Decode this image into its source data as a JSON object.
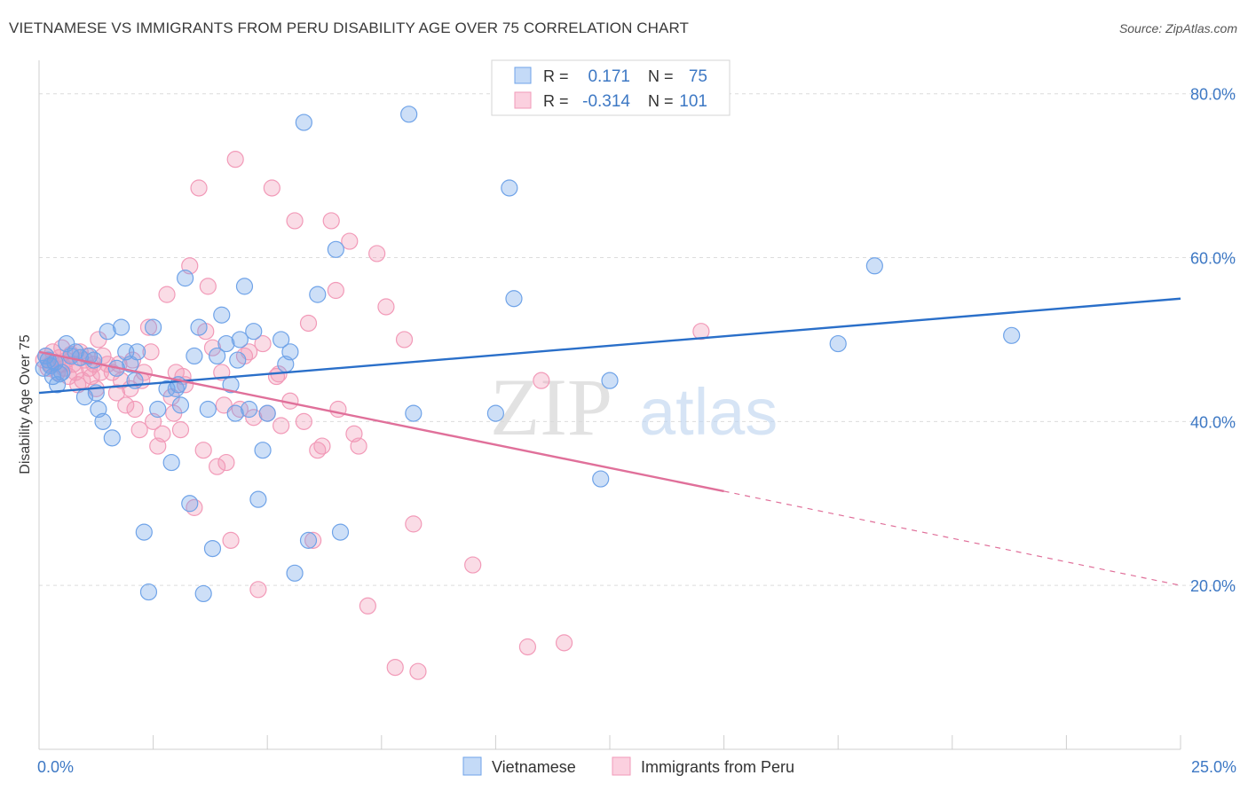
{
  "title": "VIETNAMESE VS IMMIGRANTS FROM PERU DISABILITY AGE OVER 75 CORRELATION CHART",
  "source": "Source: ZipAtlas.com",
  "watermark": {
    "zip": "ZIP",
    "atlas": "atlas"
  },
  "colors": {
    "vietnamese": "#6fa3e8",
    "vietnamese_line": "#2a6fc9",
    "peru": "#f29ab8",
    "peru_line": "#e0709a",
    "axis_label": "#3d78c4"
  },
  "stats": {
    "r_label": "R =",
    "n_label": "N =",
    "vietnamese": {
      "r": "0.171",
      "n": "75"
    },
    "peru": {
      "r": "-0.314",
      "n": "101"
    }
  },
  "legend": {
    "vietnamese": "Vietnamese",
    "peru": "Immigrants from Peru"
  },
  "chart_data": {
    "type": "scatter",
    "title": "VIETNAMESE VS IMMIGRANTS FROM PERU DISABILITY AGE OVER 75 CORRELATION CHART",
    "xlabel": "",
    "ylabel": "Disability Age Over 75",
    "xlim": [
      0,
      25
    ],
    "ylim": [
      0,
      83
    ],
    "x_tick_labels": [
      "0.0%",
      "25.0%"
    ],
    "y_ticks": [
      20,
      40,
      60,
      80
    ],
    "y_tick_labels": [
      "20.0%",
      "40.0%",
      "60.0%",
      "80.0%"
    ],
    "grid": true,
    "legend_position": "bottom-center",
    "series": [
      {
        "name": "Vietnamese",
        "points": [
          [
            0.1,
            46.5
          ],
          [
            0.2,
            47.5
          ],
          [
            0.25,
            46.8
          ],
          [
            0.3,
            45.5
          ],
          [
            0.35,
            47.2
          ],
          [
            0.4,
            44.5
          ],
          [
            0.5,
            46
          ],
          [
            0.6,
            49.5
          ],
          [
            0.7,
            48
          ],
          [
            0.8,
            48.5
          ],
          [
            0.9,
            47.8
          ],
          [
            1.0,
            43
          ],
          [
            1.1,
            48
          ],
          [
            1.2,
            47.5
          ],
          [
            1.3,
            41.5
          ],
          [
            1.4,
            40
          ],
          [
            1.5,
            51
          ],
          [
            1.6,
            38
          ],
          [
            1.7,
            46.5
          ],
          [
            1.8,
            51.5
          ],
          [
            1.9,
            48.5
          ],
          [
            2.0,
            47
          ],
          [
            2.1,
            45
          ],
          [
            2.3,
            26.5
          ],
          [
            2.4,
            19.2
          ],
          [
            2.5,
            51.5
          ],
          [
            2.6,
            41.5
          ],
          [
            2.8,
            44
          ],
          [
            2.9,
            35
          ],
          [
            3.0,
            44
          ],
          [
            3.1,
            42
          ],
          [
            3.2,
            57.5
          ],
          [
            3.3,
            30
          ],
          [
            3.4,
            48
          ],
          [
            3.5,
            51.5
          ],
          [
            3.6,
            19
          ],
          [
            3.7,
            41.5
          ],
          [
            3.8,
            24.5
          ],
          [
            3.9,
            48
          ],
          [
            4.0,
            53
          ],
          [
            4.1,
            49.5
          ],
          [
            4.2,
            44.5
          ],
          [
            4.3,
            41
          ],
          [
            4.4,
            50
          ],
          [
            4.5,
            56.5
          ],
          [
            4.6,
            41.5
          ],
          [
            4.7,
            51
          ],
          [
            4.8,
            30.5
          ],
          [
            4.9,
            36.5
          ],
          [
            5.0,
            41
          ],
          [
            5.3,
            50
          ],
          [
            5.5,
            48.5
          ],
          [
            5.6,
            21.5
          ],
          [
            5.8,
            76.5
          ],
          [
            5.9,
            25.5
          ],
          [
            6.1,
            55.5
          ],
          [
            6.5,
            61
          ],
          [
            6.6,
            26.5
          ],
          [
            8.1,
            77.5
          ],
          [
            8.2,
            41
          ],
          [
            10.0,
            41
          ],
          [
            10.3,
            68.5
          ],
          [
            10.4,
            55
          ],
          [
            12.3,
            33
          ],
          [
            12.5,
            45
          ],
          [
            17.5,
            49.5
          ],
          [
            18.3,
            59
          ],
          [
            21.3,
            50.5
          ],
          [
            0.15,
            48
          ],
          [
            0.45,
            45.8
          ],
          [
            1.25,
            43.5
          ],
          [
            2.15,
            48.5
          ],
          [
            3.05,
            44.5
          ],
          [
            4.35,
            47.5
          ],
          [
            5.4,
            47
          ]
        ]
      },
      {
        "name": "Immigrants from Peru",
        "points": [
          [
            0.1,
            47.5
          ],
          [
            0.15,
            48
          ],
          [
            0.2,
            46.5
          ],
          [
            0.25,
            47
          ],
          [
            0.3,
            48.5
          ],
          [
            0.35,
            47.2
          ],
          [
            0.4,
            46
          ],
          [
            0.45,
            47.8
          ],
          [
            0.5,
            47
          ],
          [
            0.55,
            46.5
          ],
          [
            0.6,
            47.5
          ],
          [
            0.65,
            45.5
          ],
          [
            0.7,
            48.2
          ],
          [
            0.75,
            47
          ],
          [
            0.8,
            46
          ],
          [
            0.85,
            44.5
          ],
          [
            0.9,
            48.5
          ],
          [
            0.95,
            45
          ],
          [
            1.0,
            47.5
          ],
          [
            1.05,
            48
          ],
          [
            1.1,
            46.5
          ],
          [
            1.15,
            45.5
          ],
          [
            1.2,
            47
          ],
          [
            1.25,
            44
          ],
          [
            1.3,
            50
          ],
          [
            1.4,
            48
          ],
          [
            1.5,
            47
          ],
          [
            1.6,
            46
          ],
          [
            1.7,
            43.5
          ],
          [
            1.8,
            45
          ],
          [
            1.9,
            42
          ],
          [
            2.0,
            44
          ],
          [
            2.1,
            41.5
          ],
          [
            2.2,
            39
          ],
          [
            2.25,
            45
          ],
          [
            2.3,
            46
          ],
          [
            2.4,
            51.5
          ],
          [
            2.5,
            40
          ],
          [
            2.6,
            37
          ],
          [
            2.7,
            38.5
          ],
          [
            2.8,
            55.5
          ],
          [
            2.9,
            43
          ],
          [
            3.0,
            46
          ],
          [
            3.1,
            39
          ],
          [
            3.2,
            44.5
          ],
          [
            3.3,
            59
          ],
          [
            3.4,
            29.5
          ],
          [
            3.5,
            68.5
          ],
          [
            3.6,
            36.5
          ],
          [
            3.7,
            56.5
          ],
          [
            3.8,
            49
          ],
          [
            3.9,
            34.5
          ],
          [
            4.0,
            46
          ],
          [
            4.1,
            35
          ],
          [
            4.2,
            25.5
          ],
          [
            4.3,
            72
          ],
          [
            4.4,
            41.5
          ],
          [
            4.5,
            48
          ],
          [
            4.6,
            48.5
          ],
          [
            4.7,
            40.5
          ],
          [
            4.8,
            19.5
          ],
          [
            4.9,
            49.5
          ],
          [
            5.0,
            41
          ],
          [
            5.1,
            68.5
          ],
          [
            5.2,
            45.5
          ],
          [
            5.3,
            39.5
          ],
          [
            5.5,
            42.5
          ],
          [
            5.6,
            64.5
          ],
          [
            5.8,
            40
          ],
          [
            5.9,
            52
          ],
          [
            6.0,
            25.5
          ],
          [
            6.1,
            36.5
          ],
          [
            6.2,
            37
          ],
          [
            6.4,
            64.5
          ],
          [
            6.5,
            56
          ],
          [
            6.8,
            62
          ],
          [
            6.9,
            38.5
          ],
          [
            7.0,
            37
          ],
          [
            7.2,
            17.5
          ],
          [
            7.4,
            60.5
          ],
          [
            7.6,
            54
          ],
          [
            7.8,
            10
          ],
          [
            8.0,
            50
          ],
          [
            8.2,
            27.5
          ],
          [
            8.3,
            9.5
          ],
          [
            9.5,
            22.5
          ],
          [
            10.7,
            12.5
          ],
          [
            11.0,
            45
          ],
          [
            11.5,
            13
          ],
          [
            14.5,
            51
          ],
          [
            2.05,
            47.5
          ],
          [
            3.15,
            45.5
          ],
          [
            4.05,
            42
          ],
          [
            1.35,
            46
          ],
          [
            2.45,
            48.5
          ],
          [
            0.5,
            49
          ],
          [
            1.75,
            47
          ],
          [
            5.25,
            45.8
          ],
          [
            3.65,
            51
          ],
          [
            2.95,
            41
          ],
          [
            6.55,
            41.5
          ]
        ]
      }
    ],
    "trend_lines": [
      {
        "series": "Vietnamese",
        "from": [
          0,
          43.5
        ],
        "to": [
          25,
          55
        ],
        "style": "solid"
      },
      {
        "series": "Immigrants from Peru",
        "from": [
          0,
          48.5
        ],
        "to": [
          15,
          31.5
        ],
        "style": "solid"
      },
      {
        "series": "Immigrants from Peru",
        "from": [
          15,
          31.5
        ],
        "to": [
          25,
          20
        ],
        "style": "dashed"
      }
    ]
  }
}
